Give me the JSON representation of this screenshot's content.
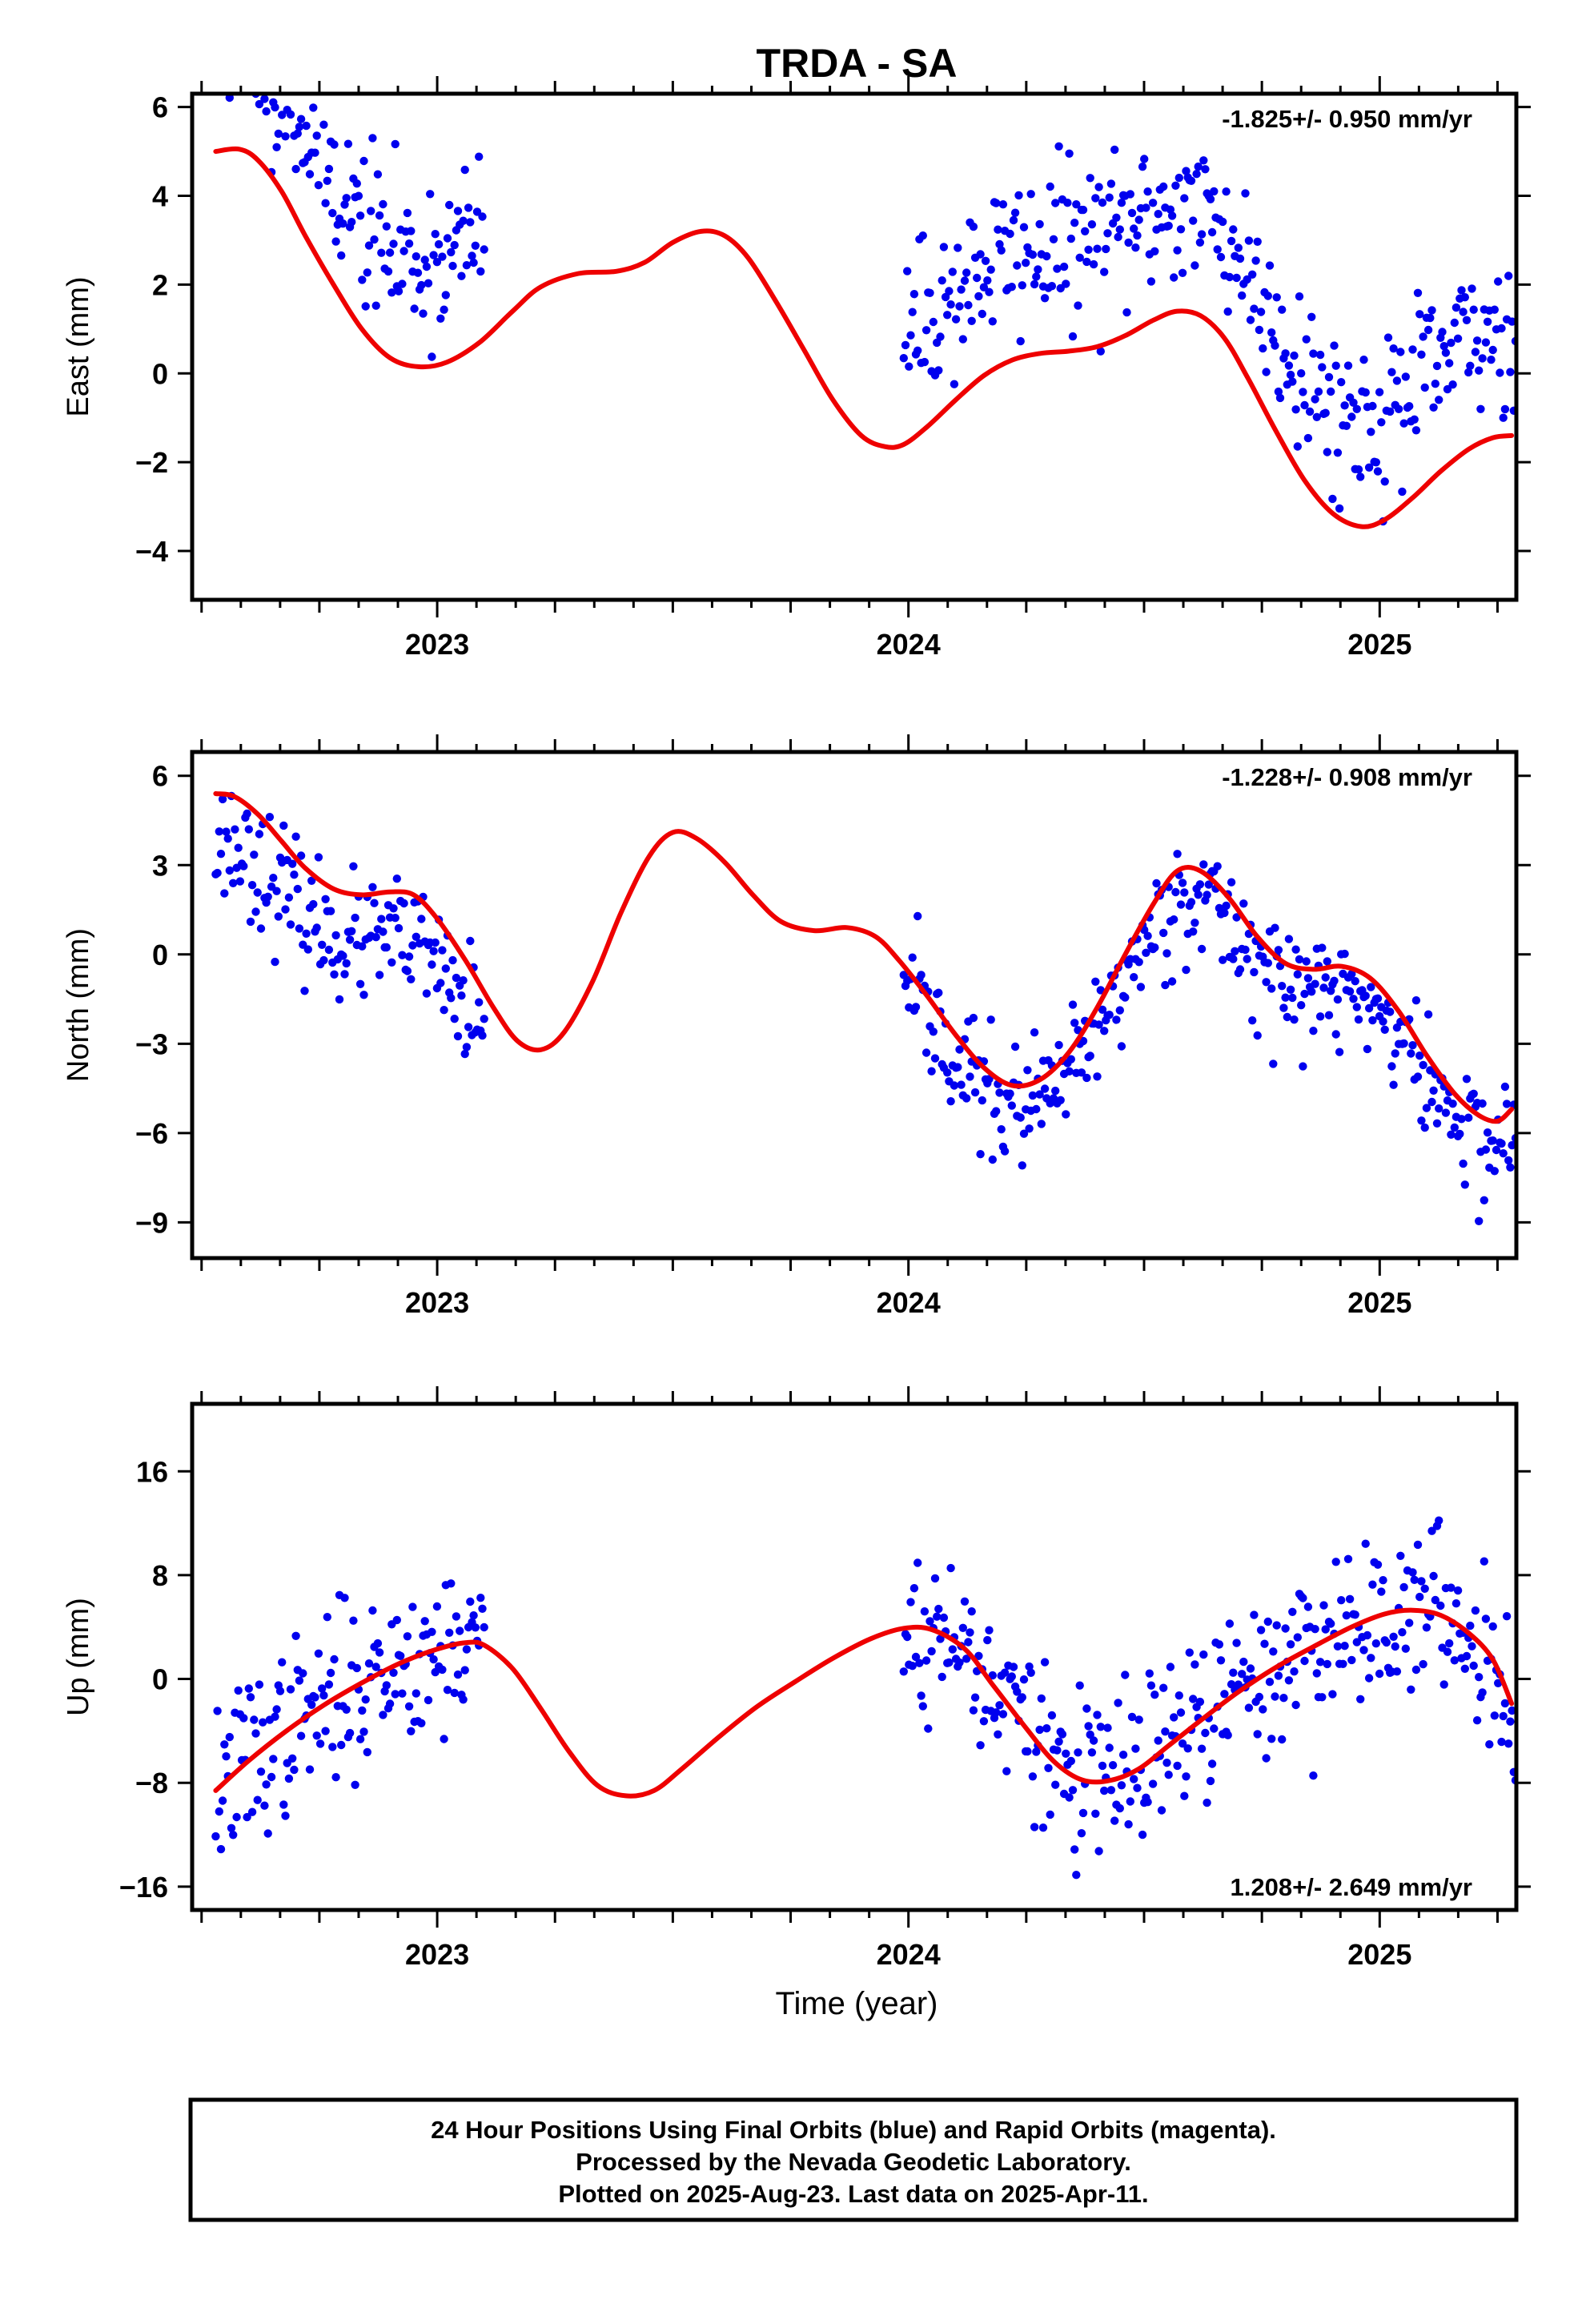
{
  "chart_data": [
    {
      "type": "scatter",
      "title": "TRDA - SA",
      "ylabel": "East (mm)",
      "ylim": [
        -5.1,
        6.3
      ],
      "yticks": [
        -4,
        -2,
        0,
        2,
        4,
        6
      ],
      "xlim": [
        2022.48,
        2025.29
      ],
      "xticks": [
        2023,
        2024,
        2025
      ],
      "rate": "-1.825+/- 0.950 mm/yr",
      "rate_position": "top-right",
      "point_color": "#0000ee",
      "line_color": "#ee0000",
      "points": {
        "seed": 11,
        "segments": [
          [
            2022.53,
            2023.1,
            2.4
          ],
          [
            2023.99,
            2025.29,
            2.4
          ]
        ],
        "scatter_sd": 0.9
      },
      "trend_points": [
        [
          2022.53,
          5.0
        ],
        [
          2022.58,
          5.05
        ],
        [
          2022.62,
          4.8
        ],
        [
          2022.67,
          4.1
        ],
        [
          2022.72,
          3.1
        ],
        [
          2022.78,
          2.0
        ],
        [
          2022.84,
          1.0
        ],
        [
          2022.9,
          0.35
        ],
        [
          2022.96,
          0.15
        ],
        [
          2023.02,
          0.25
        ],
        [
          2023.09,
          0.7
        ],
        [
          2023.16,
          1.4
        ],
        [
          2023.22,
          1.95
        ],
        [
          2023.3,
          2.25
        ],
        [
          2023.38,
          2.3
        ],
        [
          2023.44,
          2.5
        ],
        [
          2023.5,
          2.95
        ],
        [
          2023.56,
          3.2
        ],
        [
          2023.61,
          3.1
        ],
        [
          2023.66,
          2.6
        ],
        [
          2023.72,
          1.6
        ],
        [
          2023.78,
          0.5
        ],
        [
          2023.84,
          -0.6
        ],
        [
          2023.9,
          -1.4
        ],
        [
          2023.95,
          -1.65
        ],
        [
          2023.99,
          -1.6
        ],
        [
          2024.04,
          -1.2
        ],
        [
          2024.1,
          -0.6
        ],
        [
          2024.16,
          -0.05
        ],
        [
          2024.22,
          0.3
        ],
        [
          2024.28,
          0.45
        ],
        [
          2024.34,
          0.5
        ],
        [
          2024.4,
          0.6
        ],
        [
          2024.46,
          0.85
        ],
        [
          2024.52,
          1.2
        ],
        [
          2024.57,
          1.4
        ],
        [
          2024.62,
          1.3
        ],
        [
          2024.67,
          0.8
        ],
        [
          2024.72,
          -0.1
        ],
        [
          2024.78,
          -1.3
        ],
        [
          2024.84,
          -2.4
        ],
        [
          2024.9,
          -3.15
        ],
        [
          2024.96,
          -3.45
        ],
        [
          2025.01,
          -3.3
        ],
        [
          2025.07,
          -2.8
        ],
        [
          2025.13,
          -2.2
        ],
        [
          2025.19,
          -1.7
        ],
        [
          2025.24,
          -1.45
        ],
        [
          2025.28,
          -1.4
        ]
      ]
    },
    {
      "type": "scatter",
      "ylabel": "North (mm)",
      "ylim": [
        -10.2,
        6.8
      ],
      "yticks": [
        -9,
        -6,
        -3,
        0,
        3,
        6
      ],
      "xlim": [
        2022.48,
        2025.29
      ],
      "xticks": [
        2023,
        2024,
        2025
      ],
      "rate": "-1.228+/- 0.908 mm/yr",
      "rate_position": "top-right",
      "point_color": "#0000ee",
      "line_color": "#ee0000",
      "points": {
        "seed": 23,
        "segments": [
          [
            2022.53,
            2023.1,
            -1.6
          ],
          [
            2023.99,
            2025.29,
            -0.8
          ]
        ],
        "scatter_sd": 1.0
      },
      "trend_points": [
        [
          2022.53,
          5.4
        ],
        [
          2022.57,
          5.3
        ],
        [
          2022.62,
          4.7
        ],
        [
          2022.67,
          3.8
        ],
        [
          2022.72,
          2.9
        ],
        [
          2022.78,
          2.2
        ],
        [
          2022.84,
          2.0
        ],
        [
          2022.9,
          2.1
        ],
        [
          2022.95,
          2.0
        ],
        [
          2023.0,
          1.2
        ],
        [
          2023.06,
          -0.2
        ],
        [
          2023.12,
          -1.8
        ],
        [
          2023.17,
          -2.9
        ],
        [
          2023.22,
          -3.2
        ],
        [
          2023.27,
          -2.6
        ],
        [
          2023.33,
          -0.9
        ],
        [
          2023.39,
          1.4
        ],
        [
          2023.45,
          3.3
        ],
        [
          2023.5,
          4.1
        ],
        [
          2023.55,
          3.9
        ],
        [
          2023.61,
          3.1
        ],
        [
          2023.67,
          2.0
        ],
        [
          2023.73,
          1.1
        ],
        [
          2023.8,
          0.8
        ],
        [
          2023.87,
          0.9
        ],
        [
          2023.93,
          0.6
        ],
        [
          2023.98,
          -0.2
        ],
        [
          2024.04,
          -1.4
        ],
        [
          2024.1,
          -2.7
        ],
        [
          2024.16,
          -3.8
        ],
        [
          2024.22,
          -4.4
        ],
        [
          2024.28,
          -4.2
        ],
        [
          2024.34,
          -3.3
        ],
        [
          2024.4,
          -1.8
        ],
        [
          2024.46,
          0.0
        ],
        [
          2024.52,
          1.7
        ],
        [
          2024.57,
          2.8
        ],
        [
          2024.62,
          2.8
        ],
        [
          2024.68,
          1.9
        ],
        [
          2024.74,
          0.6
        ],
        [
          2024.8,
          -0.3
        ],
        [
          2024.86,
          -0.5
        ],
        [
          2024.92,
          -0.4
        ],
        [
          2024.98,
          -0.8
        ],
        [
          2025.04,
          -1.9
        ],
        [
          2025.1,
          -3.4
        ],
        [
          2025.16,
          -4.7
        ],
        [
          2025.21,
          -5.4
        ],
        [
          2025.25,
          -5.6
        ],
        [
          2025.28,
          -5.2
        ]
      ]
    },
    {
      "type": "scatter",
      "ylabel": "Up (mm)",
      "xlabel": "Time (year)",
      "ylim": [
        -17.8,
        21.2
      ],
      "yticks": [
        -16,
        -8,
        0,
        8,
        16
      ],
      "xlim": [
        2022.48,
        2025.29
      ],
      "xticks": [
        2023,
        2024,
        2025
      ],
      "rate": "1.208+/- 2.649 mm/yr",
      "rate_position": "bottom-right",
      "point_color": "#0000ee",
      "line_color": "#ee0000",
      "points": {
        "seed": 37,
        "segments": [
          [
            2022.53,
            2023.1,
            0.0
          ],
          [
            2023.99,
            2025.29,
            0.0
          ]
        ],
        "scatter_sd": 3.2
      },
      "trend_points": [
        [
          2022.53,
          -8.6
        ],
        [
          2022.6,
          -6.3
        ],
        [
          2022.68,
          -4.0
        ],
        [
          2022.76,
          -2.0
        ],
        [
          2022.84,
          -0.3
        ],
        [
          2022.92,
          1.2
        ],
        [
          2023.0,
          2.3
        ],
        [
          2023.06,
          2.8
        ],
        [
          2023.1,
          2.6
        ],
        [
          2023.16,
          0.8
        ],
        [
          2023.22,
          -2.3
        ],
        [
          2023.28,
          -5.6
        ],
        [
          2023.34,
          -8.2
        ],
        [
          2023.4,
          -9.0
        ],
        [
          2023.46,
          -8.6
        ],
        [
          2023.52,
          -6.9
        ],
        [
          2023.6,
          -4.4
        ],
        [
          2023.68,
          -2.1
        ],
        [
          2023.76,
          -0.2
        ],
        [
          2023.84,
          1.6
        ],
        [
          2023.92,
          3.1
        ],
        [
          2023.99,
          3.9
        ],
        [
          2024.05,
          3.8
        ],
        [
          2024.12,
          2.3
        ],
        [
          2024.18,
          -0.5
        ],
        [
          2024.25,
          -3.8
        ],
        [
          2024.31,
          -6.4
        ],
        [
          2024.37,
          -7.8
        ],
        [
          2024.43,
          -7.8
        ],
        [
          2024.49,
          -6.9
        ],
        [
          2024.55,
          -5.2
        ],
        [
          2024.62,
          -3.2
        ],
        [
          2024.7,
          -1.0
        ],
        [
          2024.78,
          0.9
        ],
        [
          2024.86,
          2.5
        ],
        [
          2024.94,
          4.0
        ],
        [
          2025.01,
          5.0
        ],
        [
          2025.07,
          5.3
        ],
        [
          2025.13,
          4.9
        ],
        [
          2025.19,
          3.5
        ],
        [
          2025.24,
          1.5
        ],
        [
          2025.28,
          -1.9
        ]
      ]
    }
  ],
  "footer": {
    "line1": "24 Hour Positions Using Final Orbits (blue) and Rapid Orbits (magenta).",
    "line2": "Processed by the Nevada Geodetic Laboratory.",
    "line3": "Plotted on 2025-Aug-23. Last data on 2025-Apr-11."
  }
}
